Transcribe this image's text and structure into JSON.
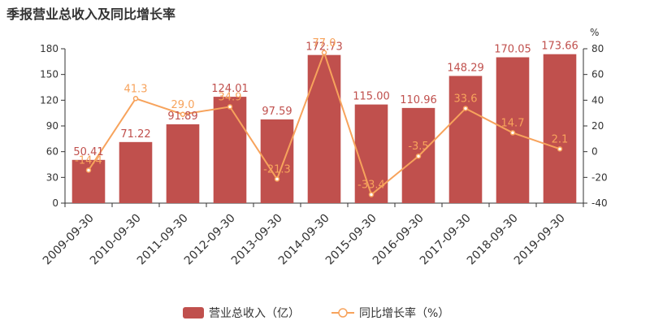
{
  "chart_data": {
    "type": "bar",
    "title": "季报营业总收入及同比增长率",
    "categories": [
      "2009-09-30",
      "2010-09-30",
      "2011-09-30",
      "2012-09-30",
      "2013-09-30",
      "2014-09-30",
      "2015-09-30",
      "2016-09-30",
      "2017-09-30",
      "2018-09-30",
      "2019-09-30"
    ],
    "series": [
      {
        "name": "营业总收入（亿）",
        "type": "bar",
        "axis": "left",
        "color": "#c0504d",
        "values": [
          50.41,
          71.22,
          91.89,
          124.01,
          97.59,
          172.73,
          115.0,
          110.96,
          148.29,
          170.05,
          173.66
        ],
        "labels": [
          "50.41",
          "71.22",
          "91.89",
          "124.01",
          "97.59",
          "172.73",
          "115.00",
          "110.96",
          "148.29",
          "170.05",
          "173.66"
        ]
      },
      {
        "name": "同比增长率（%）",
        "type": "line",
        "axis": "right",
        "color": "#f7a35c",
        "values": [
          -14.4,
          41.3,
          29.0,
          34.9,
          -21.3,
          77.0,
          -33.4,
          -3.5,
          33.6,
          14.7,
          2.1
        ],
        "labels": [
          "-14.4",
          "41.3",
          "29.0",
          "34.9",
          "-21.3",
          "77.0",
          "-33.4",
          "-3.5",
          "33.6",
          "14.7",
          "2.1"
        ]
      }
    ],
    "y_left": {
      "min": 0,
      "max": 180,
      "ticks": [
        0,
        30,
        60,
        90,
        120,
        150,
        180
      ]
    },
    "y_right": {
      "min": -40,
      "max": 80,
      "ticks": [
        -40,
        -20,
        0,
        20,
        40,
        60,
        80
      ],
      "unit": "%"
    },
    "legend": {
      "position": "bottom"
    },
    "grid": false
  }
}
